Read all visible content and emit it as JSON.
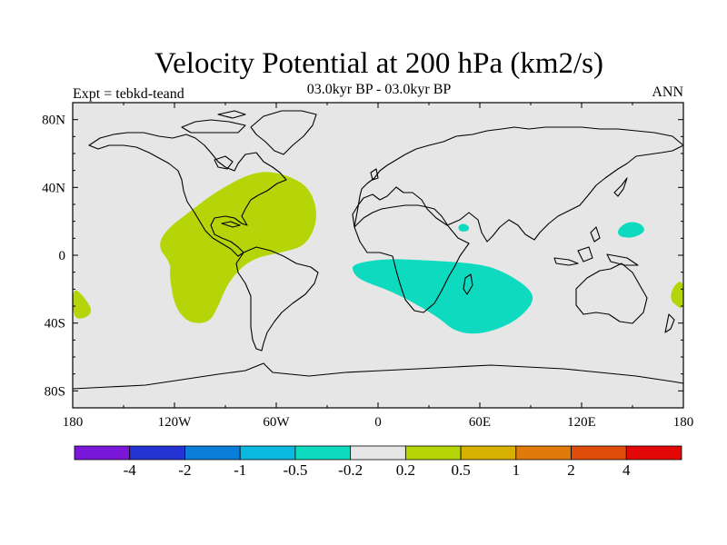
{
  "title": "Velocity Potential at 200 hPa (km2/s)",
  "subtitle_left": "Expt = tebkd-teand",
  "subtitle_center": "03.0kyr BP - 03.0kyr BP",
  "subtitle_right": "ANN",
  "map": {
    "background_color": "#e6e6e6",
    "lon_range": [
      -180,
      180
    ],
    "lat_range": [
      -90,
      90
    ],
    "lat_ticks": [
      {
        "value": 80,
        "label": "80N"
      },
      {
        "value": 40,
        "label": "40N"
      },
      {
        "value": 0,
        "label": "0"
      },
      {
        "value": -40,
        "label": "40S"
      },
      {
        "value": -80,
        "label": "80S"
      }
    ],
    "lon_ticks": [
      {
        "value": -180,
        "label": "180"
      },
      {
        "value": -120,
        "label": "120W"
      },
      {
        "value": -60,
        "label": "60W"
      },
      {
        "value": 0,
        "label": "0"
      },
      {
        "value": 60,
        "label": "60E"
      },
      {
        "value": 120,
        "label": "120E"
      },
      {
        "value": 180,
        "label": "180"
      }
    ]
  },
  "colorbar": {
    "colors": [
      "#7b17d9",
      "#2433d3",
      "#0a7ed8",
      "#0bb8e0",
      "#0edac0",
      "#e6e6e6",
      "#b6d508",
      "#d8b002",
      "#e07a0a",
      "#e04c0a",
      "#e20808"
    ],
    "labels": [
      "-4",
      "-2",
      "-1",
      "-0.5",
      "-0.2",
      "0.2",
      "0.5",
      "1",
      "2",
      "4"
    ]
  },
  "chart_data": {
    "type": "contour-map",
    "variable": "Velocity Potential at 200 hPa",
    "units": "km2/s",
    "levels": [
      -4,
      -2,
      -1,
      -0.5,
      -0.2,
      0.2,
      0.5,
      1,
      2,
      4
    ],
    "regions": [
      {
        "name": "positive-americas",
        "range": [
          0.2,
          0.5
        ],
        "color": "#b6d508",
        "outline": [
          [
            -125,
            15
          ],
          [
            -112,
            25
          ],
          [
            -95,
            38
          ],
          [
            -72,
            50
          ],
          [
            -55,
            48
          ],
          [
            -40,
            40
          ],
          [
            -35,
            22
          ],
          [
            -42,
            6
          ],
          [
            -55,
            2
          ],
          [
            -75,
            -2
          ],
          [
            -88,
            -15
          ],
          [
            -95,
            -32
          ],
          [
            -100,
            -40
          ],
          [
            -112,
            -40
          ],
          [
            -120,
            -30
          ],
          [
            -123,
            -12
          ],
          [
            -122,
            -5
          ],
          [
            -130,
            5
          ]
        ]
      },
      {
        "name": "positive-dateline-south",
        "range": [
          0.2,
          0.5
        ],
        "color": "#b6d508",
        "outline": [
          [
            -180,
            -18
          ],
          [
            -172,
            -26
          ],
          [
            -168,
            -34
          ],
          [
            -175,
            -38
          ],
          [
            -180,
            -36
          ]
        ]
      },
      {
        "name": "positive-east-edge",
        "range": [
          0.2,
          0.5
        ],
        "color": "#b6d508",
        "outline": [
          [
            180,
            -14
          ],
          [
            174,
            -18
          ],
          [
            172,
            -26
          ],
          [
            176,
            -30
          ],
          [
            180,
            -32
          ]
        ]
      },
      {
        "name": "negative-indian-ocean",
        "range": [
          -0.5,
          -0.2
        ],
        "color": "#0edac0",
        "outline": [
          [
            -15,
            -5
          ],
          [
            5,
            -2
          ],
          [
            30,
            -3
          ],
          [
            60,
            -5
          ],
          [
            75,
            -10
          ],
          [
            90,
            -20
          ],
          [
            92,
            -28
          ],
          [
            80,
            -40
          ],
          [
            60,
            -47
          ],
          [
            45,
            -45
          ],
          [
            35,
            -36
          ],
          [
            10,
            -22
          ],
          [
            -10,
            -15
          ],
          [
            -15,
            -10
          ]
        ]
      },
      {
        "name": "negative-arabian-sea",
        "range": [
          -0.5,
          -0.2
        ],
        "color": "#0edac0",
        "outline": [
          [
            47,
            17
          ],
          [
            50,
            19
          ],
          [
            54,
            17
          ],
          [
            53,
            14
          ],
          [
            48,
            14
          ]
        ]
      },
      {
        "name": "negative-west-pacific",
        "range": [
          -0.5,
          -0.2
        ],
        "color": "#0edac0",
        "outline": [
          [
            141,
            15
          ],
          [
            147,
            20
          ],
          [
            155,
            19
          ],
          [
            158,
            14
          ],
          [
            150,
            10
          ],
          [
            142,
            11
          ]
        ]
      }
    ]
  }
}
